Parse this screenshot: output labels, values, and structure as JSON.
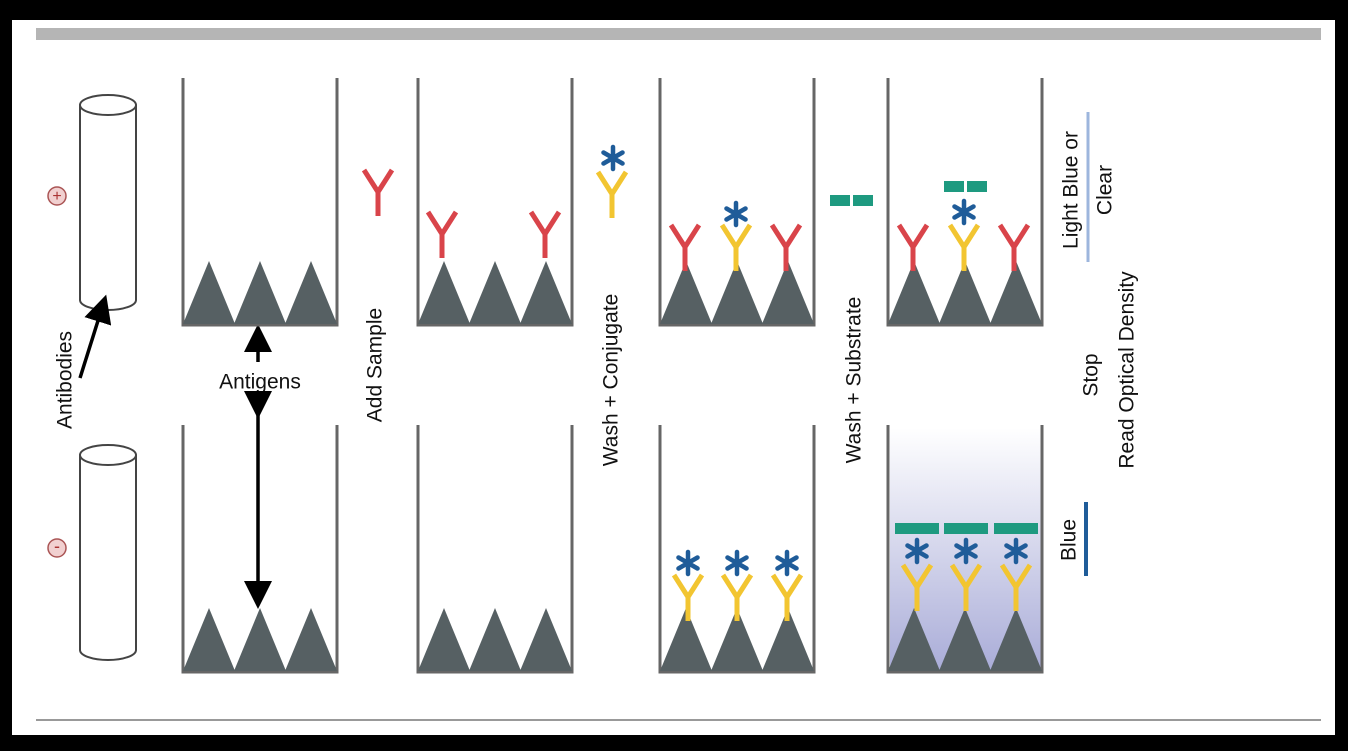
{
  "tubes": {
    "positive_sign": "+",
    "negative_sign": "-",
    "antibodies_label": "Antibodies"
  },
  "antigens_label": "Antigens",
  "steps": [
    "Add Sample",
    "Wash + Conjugate",
    "Wash + Substrate"
  ],
  "stop": {
    "title": "Stop",
    "subtitle": "Read Optical Density"
  },
  "results": {
    "light_line1": "Light Blue or",
    "light_line2": "Clear",
    "dark": "Blue"
  }
}
